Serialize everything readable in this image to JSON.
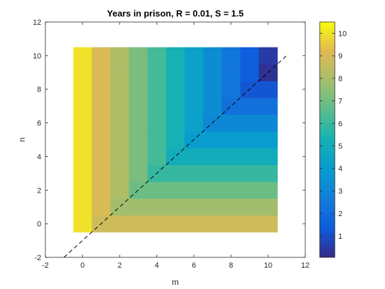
{
  "chart_data": {
    "type": "heatmap",
    "title": "Years in prison, R = 0.01, S = 1.5",
    "xlabel": "m",
    "ylabel": "n",
    "xlim": [
      -2,
      12
    ],
    "ylim": [
      -2,
      12
    ],
    "x_ticks": [
      "-2",
      "0",
      "2",
      "4",
      "6",
      "8",
      "10",
      "12"
    ],
    "y_ticks": [
      "-2",
      "0",
      "2",
      "4",
      "6",
      "8",
      "10",
      "12"
    ],
    "m_values": [
      0,
      1,
      2,
      3,
      4,
      5,
      6,
      7,
      8,
      9,
      10
    ],
    "n_values": [
      0,
      1,
      2,
      3,
      4,
      5,
      6,
      7,
      8,
      9,
      10
    ],
    "diagonal_line": {
      "from": [
        -1,
        -2
      ],
      "to": [
        12,
        11
      ],
      "style": "dashed"
    },
    "colorbar": {
      "min": 0.05,
      "max": 10.5,
      "ticks": [
        "1",
        "2",
        "3",
        "4",
        "5",
        "6",
        "7",
        "8",
        "9",
        "10"
      ],
      "colormap": "parula"
    },
    "grid": false
  }
}
